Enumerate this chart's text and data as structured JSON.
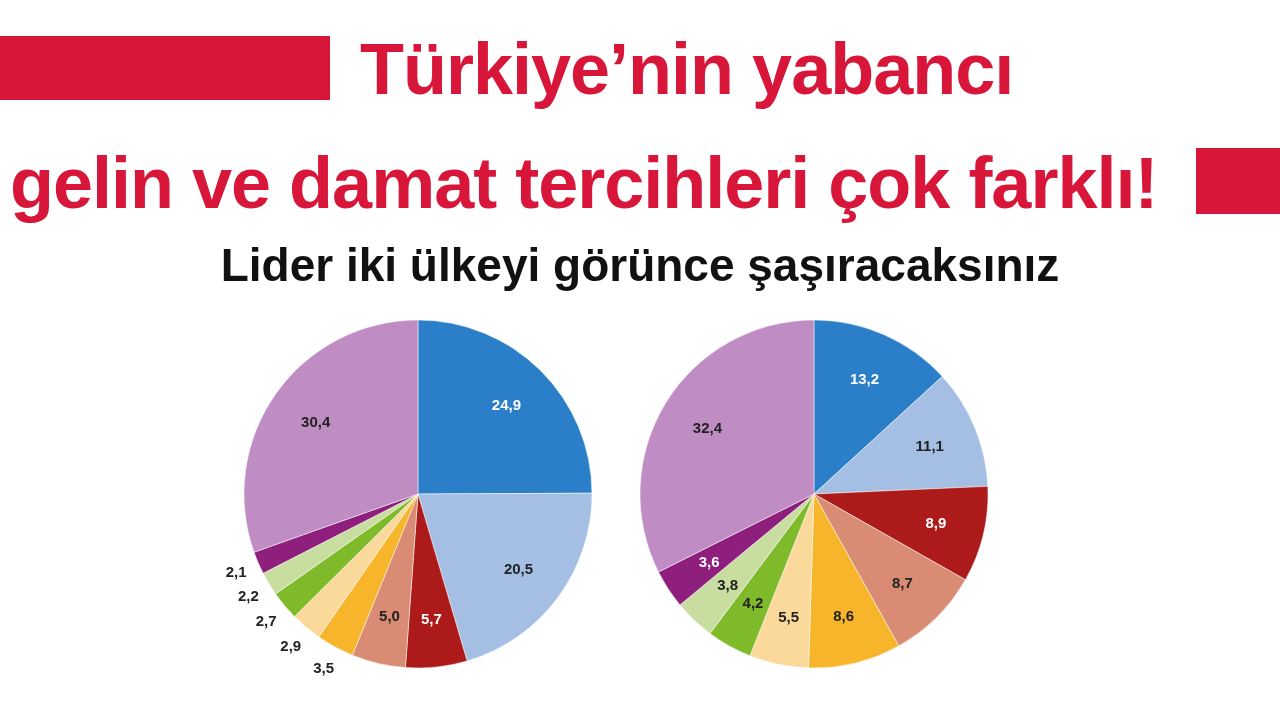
{
  "chart_data": [
    {
      "type": "pie",
      "title": "Türkiye’nin yabancı gelin ve damat tercihleri çok farklı!",
      "subtitle": "Lider iki ülkeyi görünce şaşıracaksınız",
      "categories": [
        null,
        null,
        null,
        null,
        null,
        null,
        null,
        null,
        null,
        null
      ],
      "values": [
        24.9,
        20.5,
        5.7,
        5.0,
        3.5,
        2.9,
        2.7,
        2.2,
        2.1,
        30.4
      ],
      "value_labels": [
        "24,9",
        "20,5",
        "5,7",
        "5,0",
        "3,5",
        "2,9",
        "2,7",
        "2,2",
        "2,1",
        "30,4"
      ],
      "colors": [
        "#2a7fc8",
        "#a4bfe3",
        "#ac1a1a",
        "#d98b73",
        "#f6b52b",
        "#fbd99a",
        "#7fba2a",
        "#c7dea0",
        "#8e1f7c",
        "#c08cc4"
      ]
    },
    {
      "type": "pie",
      "categories": [
        null,
        null,
        null,
        null,
        null,
        null,
        null,
        null,
        null,
        null
      ],
      "values": [
        13.2,
        11.1,
        8.9,
        8.7,
        8.6,
        5.5,
        4.2,
        3.8,
        3.6,
        32.4
      ],
      "value_labels": [
        "13,2",
        "11,1",
        "8,9",
        "8,7",
        "8,6",
        "5,5",
        "4,2",
        "3,8",
        "3,6",
        "32,4"
      ],
      "colors": [
        "#2a7fc8",
        "#a4bfe3",
        "#ac1a1a",
        "#d98b73",
        "#f6b52b",
        "#fbd99a",
        "#7fba2a",
        "#c7dea0",
        "#8e1f7c",
        "#c08cc4"
      ]
    }
  ]
}
